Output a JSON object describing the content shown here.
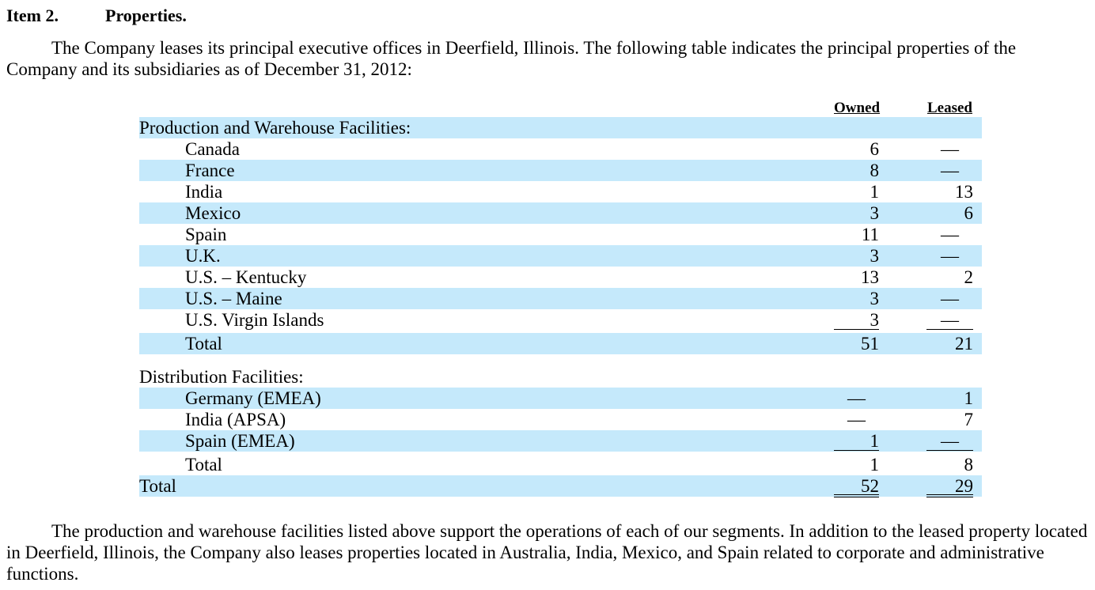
{
  "heading": {
    "item_number": "Item 2.",
    "title": "Properties."
  },
  "intro_text": "The Company leases its principal executive offices in Deerfield, Illinois. The following table indicates the principal properties of the Company and its subsidiaries as of December 31, 2012:",
  "table": {
    "columns": {
      "owned": "Owned",
      "leased": "Leased"
    },
    "production_header": "Production and Warehouse Facilities:",
    "production_rows": [
      {
        "label": "Canada",
        "owned": "6",
        "leased": "—"
      },
      {
        "label": "France",
        "owned": "8",
        "leased": "—"
      },
      {
        "label": "India",
        "owned": "1",
        "leased": "13"
      },
      {
        "label": "Mexico",
        "owned": "3",
        "leased": "6"
      },
      {
        "label": "Spain",
        "owned": "11",
        "leased": "—"
      },
      {
        "label": "U.K.",
        "owned": "3",
        "leased": "—"
      },
      {
        "label": "U.S. – Kentucky",
        "owned": "13",
        "leased": "2"
      },
      {
        "label": "U.S. – Maine",
        "owned": "3",
        "leased": "—"
      },
      {
        "label": "U.S. Virgin Islands",
        "owned": "3",
        "leased": "—"
      }
    ],
    "production_total": {
      "label": "Total",
      "owned": "51",
      "leased": "21"
    },
    "distribution_header": "Distribution Facilities:",
    "distribution_rows": [
      {
        "label": "Germany (EMEA)",
        "owned": "—",
        "leased": "1"
      },
      {
        "label": "India (APSA)",
        "owned": "—",
        "leased": "7"
      },
      {
        "label": "Spain (EMEA)",
        "owned": "1",
        "leased": "—"
      }
    ],
    "distribution_total": {
      "label": "Total",
      "owned": "1",
      "leased": "8"
    },
    "grand_total": {
      "label": "Total",
      "owned": "52",
      "leased": "29"
    }
  },
  "closing_text": "The production and warehouse facilities listed above support the operations of each of our segments. In addition to the leased property located in Deerfield, Illinois, the Company also leases properties located in Australia, India, Mexico, and Spain related to corporate and administrative functions."
}
